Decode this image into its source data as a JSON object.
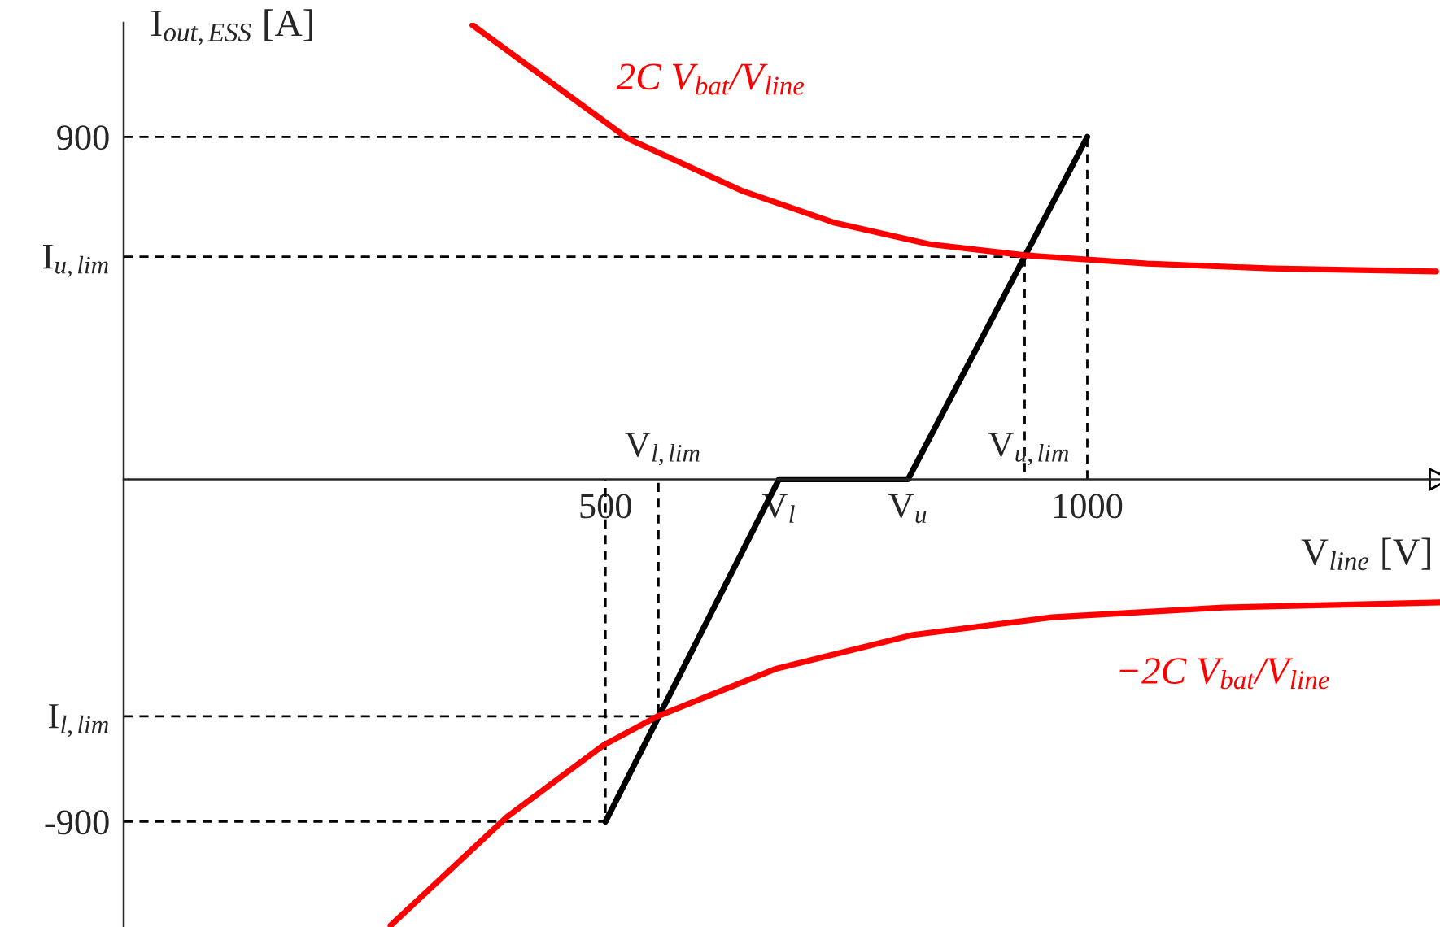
{
  "chart_data": {
    "type": "line",
    "xlabel": "V$_{line}$ [V]",
    "ylabel": "I$_{out,ESS}$ [A]",
    "xlim": [
      0,
      1366
    ],
    "ylim": [
      -1177,
      1200
    ],
    "xticks": [
      500,
      {
        "value": 680,
        "label": "V$_{l}$"
      },
      {
        "value": 814,
        "label": "V$_{u}$"
      },
      1000
    ],
    "yticks": [
      {
        "value": -900,
        "label": "-900"
      },
      {
        "value": -623,
        "label": "I$_{l,lim}$"
      },
      {
        "value": 585,
        "label": "I$_{u,lim}$"
      },
      900
    ],
    "grid": false,
    "annotations": [
      {
        "text": "V$_{l,lim}$",
        "x": 555,
        "y": 0
      },
      {
        "text": "V$_{u,lim}$",
        "x": 935,
        "y": 0
      }
    ],
    "series": [
      {
        "color": "#000000",
        "line_style": "dashed",
        "x": [
          0,
          1000,
          1000
        ],
        "values": [
          900,
          900,
          0
        ]
      },
      {
        "color": "#000000",
        "line_style": "dashed",
        "x": [
          0,
          935,
          935
        ],
        "values": [
          585,
          585,
          0
        ]
      },
      {
        "color": "#000000",
        "line_style": "dashed",
        "x": [
          0,
          555,
          555
        ],
        "values": [
          -623,
          -623,
          0
        ]
      },
      {
        "color": "#000000",
        "line_style": "dashed",
        "x": [
          0,
          500,
          500
        ],
        "values": [
          -900,
          -900,
          0
        ]
      },
      {
        "color": "#000000",
        "line_style": "solid",
        "x": [
          500,
          680,
          814,
          1000
        ],
        "values": [
          -900,
          0,
          0,
          900
        ]
      },
      {
        "name": "2C V$_{bat}$/V$_{line}$",
        "color": "#ff0000",
        "line_style": "solid",
        "x": [
          362,
          523,
          641,
          738,
          836,
          935,
          1062,
          1191,
          1362
        ],
        "values": [
          1194,
          896,
          759,
          674,
          618,
          589,
          567,
          554,
          546
        ]
      },
      {
        "name": "−2C V$_{bat}$/V$_{line}$",
        "color": "#ff0000",
        "line_style": "solid",
        "x": [
          277,
          398,
          498,
          554,
          676,
          819,
          963,
          1141,
          1366
        ],
        "values": [
          -1173,
          -887,
          -699,
          -623,
          -499,
          -409,
          -363,
          -337,
          -324
        ]
      }
    ]
  }
}
